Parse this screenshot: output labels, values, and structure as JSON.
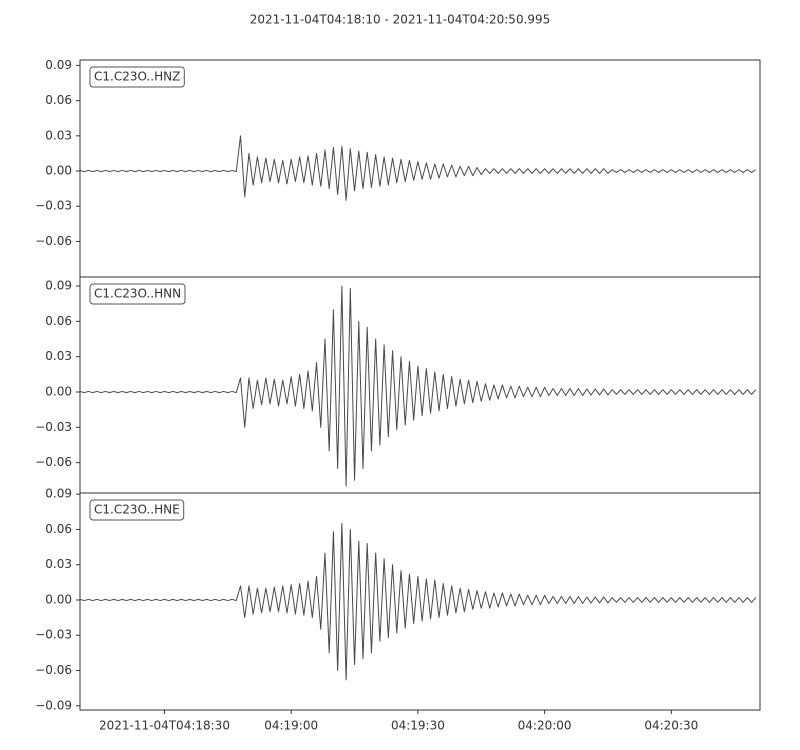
{
  "title": "2021-11-04T04:18:10  -  2021-11-04T04:20:50.995",
  "chart_data": [
    {
      "type": "line",
      "title": "C1.C23O..HNZ",
      "color": "#4a4a4a",
      "xlim": [
        0,
        160.995
      ],
      "ylim": [
        -0.0903,
        0.0946
      ],
      "yticks": [
        {
          "value": -0.06,
          "label": "−0.06"
        },
        {
          "value": -0.03,
          "label": "−0.03"
        },
        {
          "value": 0,
          "label": "0.00"
        },
        0.03,
        0.06,
        0.09
      ],
      "x": [
        0,
        1,
        2,
        3,
        4,
        5,
        6,
        7,
        8,
        9,
        10,
        11,
        12,
        13,
        14,
        15,
        16,
        17,
        18,
        19,
        20,
        21,
        22,
        23,
        24,
        25,
        26,
        27,
        28,
        29,
        30,
        31,
        32,
        33,
        34,
        35,
        36,
        37,
        38,
        39,
        40,
        41,
        42,
        43,
        44,
        45,
        46,
        47,
        48,
        49,
        50,
        51,
        52,
        53,
        54,
        55,
        56,
        57,
        58,
        59,
        60,
        61,
        62,
        63,
        64,
        65,
        66,
        67,
        68,
        69,
        70,
        71,
        72,
        73,
        74,
        75,
        76,
        77,
        78,
        79,
        80,
        81,
        82,
        83,
        84,
        85,
        86,
        87,
        88,
        89,
        90,
        91,
        92,
        93,
        94,
        95,
        96,
        97,
        98,
        99,
        100,
        101,
        102,
        103,
        104,
        105,
        106,
        107,
        108,
        109,
        110,
        111,
        112,
        113,
        114,
        115,
        116,
        117,
        118,
        119,
        120,
        121,
        122,
        123,
        124,
        125,
        126,
        127,
        128,
        129,
        130,
        131,
        132,
        133,
        134,
        135,
        136,
        137,
        138,
        139,
        140,
        141,
        142,
        143,
        144,
        145,
        146,
        147,
        148,
        149,
        150,
        151,
        152,
        153,
        154,
        155,
        156,
        157,
        158,
        159,
        160
      ],
      "values": [
        0.0005,
        -0.0005,
        0.0005,
        -0.0005,
        0.0005,
        -0.0005,
        0.0005,
        -0.0005,
        0.0005,
        -0.0005,
        0.0005,
        -0.0005,
        0.0005,
        -0.0005,
        0.0005,
        -0.0005,
        0.0005,
        -0.0005,
        0.0005,
        -0.0005,
        0.0005,
        -0.0005,
        0.0005,
        -0.0005,
        0.0005,
        -0.0005,
        0.0005,
        -0.0005,
        0.0005,
        -0.0005,
        0.0005,
        -0.0005,
        0.0005,
        -0.0005,
        0.0005,
        -0.0005,
        0.0005,
        -0.0005,
        0.03,
        -0.022,
        0.015,
        -0.012,
        0.012,
        -0.01,
        0.011,
        -0.009,
        0.01,
        -0.01,
        0.009,
        -0.011,
        0.01,
        -0.009,
        0.012,
        -0.01,
        0.013,
        -0.012,
        0.015,
        -0.013,
        0.018,
        -0.015,
        0.02,
        -0.02,
        0.021,
        -0.025,
        0.019,
        -0.017,
        0.017,
        -0.015,
        0.016,
        -0.014,
        0.014,
        -0.013,
        0.012,
        -0.012,
        0.011,
        -0.01,
        0.01,
        -0.009,
        0.009,
        -0.008,
        0.008,
        -0.007,
        0.007,
        -0.007,
        0.006,
        -0.006,
        0.006,
        -0.005,
        0.005,
        -0.005,
        0.004,
        -0.004,
        0.004,
        -0.004,
        0.003,
        -0.003,
        0.002,
        -0.002,
        0.002,
        -0.002,
        0.002,
        -0.002,
        0.002,
        -0.002,
        0.002,
        -0.002,
        0.002,
        -0.002,
        0.002,
        -0.002,
        0.002,
        -0.002,
        0.002,
        -0.002,
        0.002,
        -0.002,
        0.002,
        -0.002,
        0.002,
        -0.002,
        0.002,
        -0.002,
        0.002,
        -0.002,
        0.002,
        -0.002,
        0.0012,
        -0.0012,
        0.0012,
        -0.0012,
        0.0012,
        -0.0012,
        0.0012,
        -0.0012,
        0.0012,
        -0.0012,
        0.0012,
        -0.0012,
        0.0012,
        -0.0012,
        0.0012,
        -0.0012,
        0.0012,
        -0.0012,
        0.0012,
        -0.0012,
        0.0012,
        -0.0012,
        0.0012,
        -0.0012,
        0.0012,
        -0.0012,
        0.0012,
        -0.0012,
        0.0012,
        -0.0012,
        0.0012,
        -0.0012,
        0.0012,
        -0.0012,
        0.0012
      ]
    },
    {
      "type": "line",
      "title": "C1.C23O..HNN",
      "color": "#4a4a4a",
      "xlim": [
        0,
        160.995
      ],
      "ylim": [
        -0.0858,
        0.0977
      ],
      "yticks": [
        {
          "value": -0.06,
          "label": "−0.06"
        },
        {
          "value": -0.03,
          "label": "−0.03"
        },
        {
          "value": 0,
          "label": "0.00"
        },
        0.03,
        0.06,
        0.09
      ],
      "x": [
        0,
        1,
        2,
        3,
        4,
        5,
        6,
        7,
        8,
        9,
        10,
        11,
        12,
        13,
        14,
        15,
        16,
        17,
        18,
        19,
        20,
        21,
        22,
        23,
        24,
        25,
        26,
        27,
        28,
        29,
        30,
        31,
        32,
        33,
        34,
        35,
        36,
        37,
        38,
        39,
        40,
        41,
        42,
        43,
        44,
        45,
        46,
        47,
        48,
        49,
        50,
        51,
        52,
        53,
        54,
        55,
        56,
        57,
        58,
        59,
        60,
        61,
        62,
        63,
        64,
        65,
        66,
        67,
        68,
        69,
        70,
        71,
        72,
        73,
        74,
        75,
        76,
        77,
        78,
        79,
        80,
        81,
        82,
        83,
        84,
        85,
        86,
        87,
        88,
        89,
        90,
        91,
        92,
        93,
        94,
        95,
        96,
        97,
        98,
        99,
        100,
        101,
        102,
        103,
        104,
        105,
        106,
        107,
        108,
        109,
        110,
        111,
        112,
        113,
        114,
        115,
        116,
        117,
        118,
        119,
        120,
        121,
        122,
        123,
        124,
        125,
        126,
        127,
        128,
        129,
        130,
        131,
        132,
        133,
        134,
        135,
        136,
        137,
        138,
        139,
        140,
        141,
        142,
        143,
        144,
        145,
        146,
        147,
        148,
        149,
        150,
        151,
        152,
        153,
        154,
        155,
        156,
        157,
        158,
        159,
        160
      ],
      "values": [
        0.0005,
        -0.0005,
        0.0005,
        -0.0005,
        0.0005,
        -0.0005,
        0.0005,
        -0.0005,
        0.0005,
        -0.0005,
        0.0005,
        -0.0005,
        0.0005,
        -0.0005,
        0.0005,
        -0.0005,
        0.0005,
        -0.0005,
        0.0005,
        -0.0005,
        0.0005,
        -0.0005,
        0.0005,
        -0.0005,
        0.0005,
        -0.0005,
        0.0005,
        -0.0005,
        0.0005,
        -0.0005,
        0.0005,
        -0.0005,
        0.0005,
        -0.0005,
        0.0005,
        -0.0005,
        0.0005,
        -0.0005,
        0.012,
        -0.03,
        0.012,
        -0.014,
        0.01,
        -0.011,
        0.012,
        -0.01,
        0.011,
        -0.012,
        0.01,
        -0.01,
        0.013,
        -0.012,
        0.015,
        -0.014,
        0.018,
        -0.016,
        0.025,
        -0.03,
        0.045,
        -0.05,
        0.07,
        -0.065,
        0.09,
        -0.08,
        0.088,
        -0.075,
        0.06,
        -0.065,
        0.055,
        -0.05,
        0.045,
        -0.045,
        0.04,
        -0.038,
        0.035,
        -0.032,
        0.03,
        -0.028,
        0.026,
        -0.024,
        0.022,
        -0.02,
        0.02,
        -0.018,
        0.017,
        -0.016,
        0.015,
        -0.014,
        0.013,
        -0.012,
        0.011,
        -0.01,
        0.01,
        -0.009,
        0.009,
        -0.008,
        0.007,
        -0.007,
        0.006,
        -0.006,
        0.006,
        -0.005,
        0.005,
        -0.005,
        0.005,
        -0.004,
        0.004,
        -0.004,
        0.004,
        -0.004,
        0.004,
        -0.003,
        0.003,
        -0.003,
        0.003,
        -0.003,
        0.003,
        -0.003,
        0.003,
        -0.003,
        0.0025,
        -0.0025,
        0.0025,
        -0.0025,
        0.0025,
        -0.0025,
        0.002,
        -0.002,
        0.002,
        -0.002,
        0.002,
        -0.002,
        0.002,
        -0.002,
        0.002,
        -0.002,
        0.002,
        -0.002,
        0.002,
        -0.002,
        0.002,
        -0.002,
        0.002,
        -0.002,
        0.002,
        -0.002,
        0.002,
        -0.002,
        0.002,
        -0.002,
        0.002,
        -0.002,
        0.002,
        -0.002,
        0.002,
        -0.002,
        0.002,
        -0.002,
        0.002,
        -0.002,
        0.002
      ]
    },
    {
      "type": "line",
      "title": "C1.C23O..HNE",
      "color": "#4a4a4a",
      "xlim": [
        0,
        160.995
      ],
      "ylim": [
        -0.0936,
        0.091
      ],
      "yticks": [
        {
          "value": -0.09,
          "label": "−0.09"
        },
        {
          "value": -0.06,
          "label": "−0.06"
        },
        {
          "value": -0.03,
          "label": "−0.03"
        },
        {
          "value": 0,
          "label": "0.00"
        },
        0.03,
        0.06,
        0.09
      ],
      "xticks": [
        {
          "value": 20,
          "label": "2021-11-04T04:18:30"
        },
        {
          "value": 50,
          "label": "04:19:00"
        },
        {
          "value": 80,
          "label": "04:19:30"
        },
        {
          "value": 110,
          "label": "04:20:00"
        },
        {
          "value": 140,
          "label": "04:20:30"
        }
      ],
      "x": [
        0,
        1,
        2,
        3,
        4,
        5,
        6,
        7,
        8,
        9,
        10,
        11,
        12,
        13,
        14,
        15,
        16,
        17,
        18,
        19,
        20,
        21,
        22,
        23,
        24,
        25,
        26,
        27,
        28,
        29,
        30,
        31,
        32,
        33,
        34,
        35,
        36,
        37,
        38,
        39,
        40,
        41,
        42,
        43,
        44,
        45,
        46,
        47,
        48,
        49,
        50,
        51,
        52,
        53,
        54,
        55,
        56,
        57,
        58,
        59,
        60,
        61,
        62,
        63,
        64,
        65,
        66,
        67,
        68,
        69,
        70,
        71,
        72,
        73,
        74,
        75,
        76,
        77,
        78,
        79,
        80,
        81,
        82,
        83,
        84,
        85,
        86,
        87,
        88,
        89,
        90,
        91,
        92,
        93,
        94,
        95,
        96,
        97,
        98,
        99,
        100,
        101,
        102,
        103,
        104,
        105,
        106,
        107,
        108,
        109,
        110,
        111,
        112,
        113,
        114,
        115,
        116,
        117,
        118,
        119,
        120,
        121,
        122,
        123,
        124,
        125,
        126,
        127,
        128,
        129,
        130,
        131,
        132,
        133,
        134,
        135,
        136,
        137,
        138,
        139,
        140,
        141,
        142,
        143,
        144,
        145,
        146,
        147,
        148,
        149,
        150,
        151,
        152,
        153,
        154,
        155,
        156,
        157,
        158,
        159,
        160
      ],
      "values": [
        0.0005,
        -0.0005,
        0.0005,
        -0.0005,
        0.0005,
        -0.0005,
        0.0005,
        -0.0005,
        0.0005,
        -0.0005,
        0.0005,
        -0.0005,
        0.0005,
        -0.0005,
        0.0005,
        -0.0005,
        0.0005,
        -0.0005,
        0.0005,
        -0.0005,
        0.0005,
        -0.0005,
        0.0005,
        -0.0005,
        0.0005,
        -0.0005,
        0.0005,
        -0.0005,
        0.0005,
        -0.0005,
        0.0005,
        -0.0005,
        0.0005,
        -0.0005,
        0.0005,
        -0.0005,
        0.0005,
        -0.0005,
        0.012,
        -0.015,
        0.012,
        -0.012,
        0.01,
        -0.011,
        0.01,
        -0.01,
        0.011,
        -0.01,
        0.012,
        -0.011,
        0.013,
        -0.012,
        0.014,
        -0.013,
        0.016,
        -0.015,
        0.02,
        -0.025,
        0.04,
        -0.045,
        0.058,
        -0.06,
        0.065,
        -0.068,
        0.06,
        -0.055,
        0.05,
        -0.05,
        0.048,
        -0.045,
        0.04,
        -0.035,
        0.035,
        -0.032,
        0.03,
        -0.028,
        0.025,
        -0.024,
        0.022,
        -0.02,
        0.02,
        -0.018,
        0.018,
        -0.016,
        0.017,
        -0.015,
        0.014,
        -0.013,
        0.012,
        -0.011,
        0.01,
        -0.01,
        0.009,
        -0.008,
        0.008,
        -0.007,
        0.007,
        -0.007,
        0.006,
        -0.006,
        0.006,
        -0.005,
        0.005,
        -0.005,
        0.005,
        -0.004,
        0.004,
        -0.004,
        0.004,
        -0.004,
        0.004,
        -0.003,
        0.003,
        -0.003,
        0.003,
        -0.003,
        0.003,
        -0.003,
        0.003,
        -0.003,
        0.0025,
        -0.0025,
        0.0025,
        -0.0025,
        0.0025,
        -0.0025,
        0.002,
        -0.002,
        0.002,
        -0.002,
        0.002,
        -0.002,
        0.002,
        -0.002,
        0.002,
        -0.002,
        0.002,
        -0.002,
        0.002,
        -0.002,
        0.002,
        -0.002,
        0.002,
        -0.002,
        0.002,
        -0.002,
        0.002,
        -0.002,
        0.002,
        -0.002,
        0.002,
        -0.002,
        0.002,
        -0.002,
        0.002,
        -0.002,
        0.002,
        -0.002,
        0.002,
        -0.002,
        0.002
      ]
    }
  ]
}
